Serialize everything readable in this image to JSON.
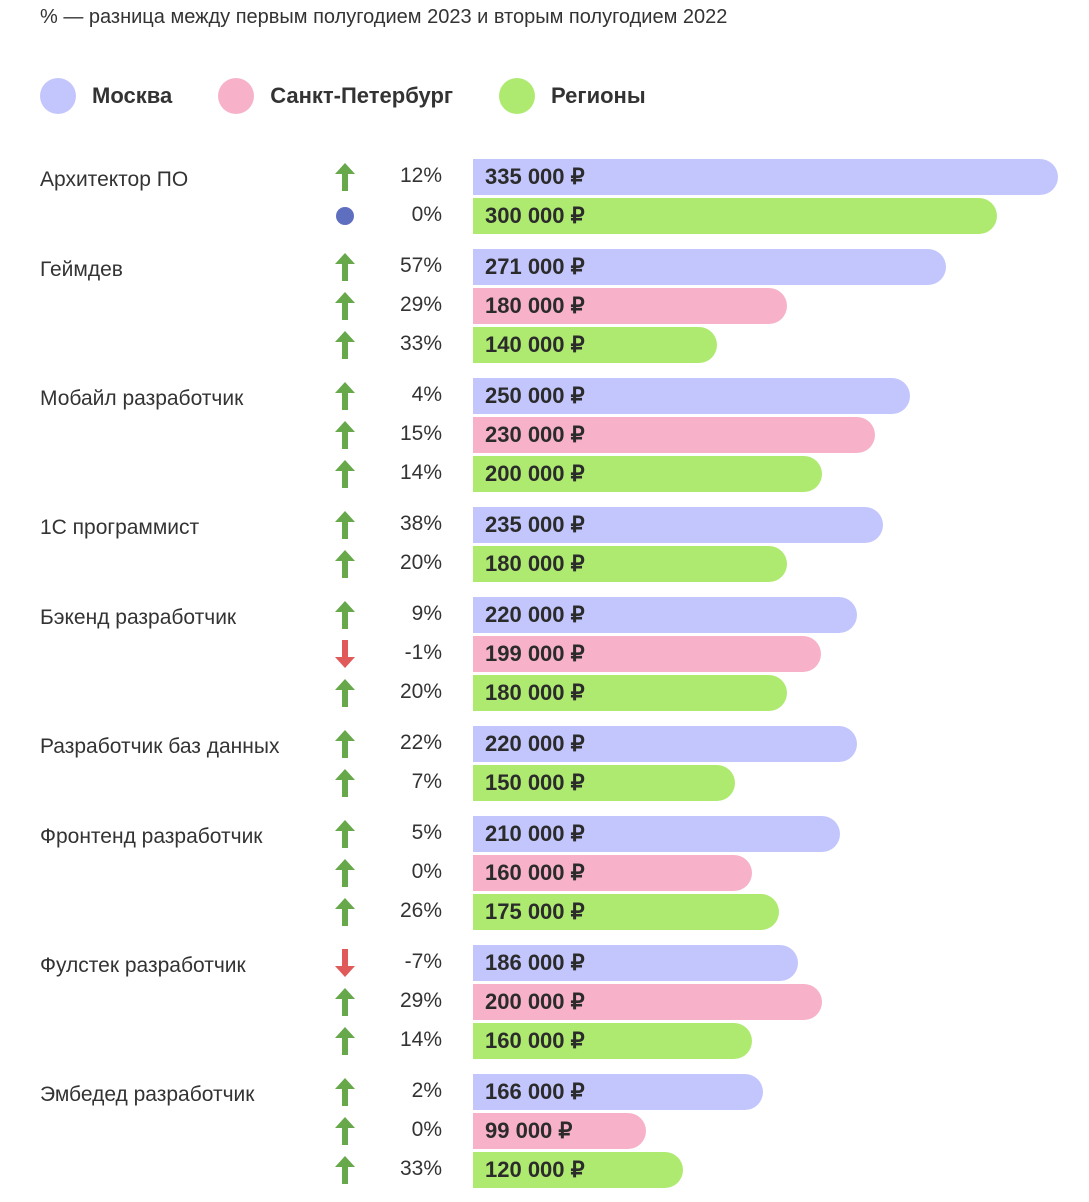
{
  "note": "% — разница между первым полугодием 2023 и вторым полугодием 2022",
  "colors": {
    "Москва": "#c3c6fd",
    "Санкт-Петербург": "#f7b2c9",
    "Регионы": "#aeea6f",
    "up": "#67a84b",
    "down": "#e05a5a",
    "flat": "#5f6fbf"
  },
  "legend": [
    {
      "label": "Москва"
    },
    {
      "label": "Санкт-Петербург"
    },
    {
      "label": "Регионы"
    }
  ],
  "chart_data": {
    "type": "bar",
    "orientation": "horizontal",
    "unit": "₽",
    "groups": [
      {
        "label": "Архитектор ПО",
        "rows": [
          {
            "series": "Москва",
            "value": 335000,
            "label": "335 000 ₽",
            "change": "12%",
            "trend": "up"
          },
          {
            "series": "Регионы",
            "value": 300000,
            "label": "300 000 ₽",
            "change": "0%",
            "trend": "flat"
          }
        ]
      },
      {
        "label": "Геймдев",
        "rows": [
          {
            "series": "Москва",
            "value": 271000,
            "label": "271 000 ₽",
            "change": "57%",
            "trend": "up"
          },
          {
            "series": "Санкт-Петербург",
            "value": 180000,
            "label": "180 000 ₽",
            "change": "29%",
            "trend": "up"
          },
          {
            "series": "Регионы",
            "value": 140000,
            "label": "140 000 ₽",
            "change": "33%",
            "trend": "up"
          }
        ]
      },
      {
        "label": "Мобайл разработчик",
        "rows": [
          {
            "series": "Москва",
            "value": 250000,
            "label": "250 000 ₽",
            "change": "4%",
            "trend": "up"
          },
          {
            "series": "Санкт-Петербург",
            "value": 230000,
            "label": "230 000 ₽",
            "change": "15%",
            "trend": "up"
          },
          {
            "series": "Регионы",
            "value": 200000,
            "label": "200 000 ₽",
            "change": "14%",
            "trend": "up"
          }
        ]
      },
      {
        "label": "1С программист",
        "rows": [
          {
            "series": "Москва",
            "value": 235000,
            "label": "235 000 ₽",
            "change": "38%",
            "trend": "up"
          },
          {
            "series": "Регионы",
            "value": 180000,
            "label": "180 000 ₽",
            "change": "20%",
            "trend": "up"
          }
        ]
      },
      {
        "label": "Бэкенд разработчик",
        "rows": [
          {
            "series": "Москва",
            "value": 220000,
            "label": "220 000 ₽",
            "change": "9%",
            "trend": "up"
          },
          {
            "series": "Санкт-Петербург",
            "value": 199000,
            "label": "199 000 ₽",
            "change": "-1%",
            "trend": "down"
          },
          {
            "series": "Регионы",
            "value": 180000,
            "label": "180 000 ₽",
            "change": "20%",
            "trend": "up"
          }
        ]
      },
      {
        "label": "Разработчик баз данных",
        "rows": [
          {
            "series": "Москва",
            "value": 220000,
            "label": "220 000 ₽",
            "change": "22%",
            "trend": "up"
          },
          {
            "series": "Регионы",
            "value": 150000,
            "label": "150 000 ₽",
            "change": "7%",
            "trend": "up"
          }
        ]
      },
      {
        "label": "Фронтенд разработчик",
        "rows": [
          {
            "series": "Москва",
            "value": 210000,
            "label": "210 000 ₽",
            "change": "5%",
            "trend": "up"
          },
          {
            "series": "Санкт-Петербург",
            "value": 160000,
            "label": "160 000 ₽",
            "change": "0%",
            "trend": "up"
          },
          {
            "series": "Регионы",
            "value": 175000,
            "label": "175 000 ₽",
            "change": "26%",
            "trend": "up"
          }
        ]
      },
      {
        "label": "Фулстек разработчик",
        "rows": [
          {
            "series": "Москва",
            "value": 186000,
            "label": "186 000 ₽",
            "change": "-7%",
            "trend": "down"
          },
          {
            "series": "Санкт-Петербург",
            "value": 200000,
            "label": "200 000 ₽",
            "change": "29%",
            "trend": "up"
          },
          {
            "series": "Регионы",
            "value": 160000,
            "label": "160 000 ₽",
            "change": "14%",
            "trend": "up"
          }
        ]
      },
      {
        "label": "Эмбедед разработчик",
        "rows": [
          {
            "series": "Москва",
            "value": 166000,
            "label": "166 000 ₽",
            "change": "2%",
            "trend": "up"
          },
          {
            "series": "Санкт-Петербург",
            "value": 99000,
            "label": "99 000 ₽",
            "change": "0%",
            "trend": "up"
          },
          {
            "series": "Регионы",
            "value": 120000,
            "label": "120 000 ₽",
            "change": "33%",
            "trend": "up"
          }
        ]
      }
    ]
  }
}
